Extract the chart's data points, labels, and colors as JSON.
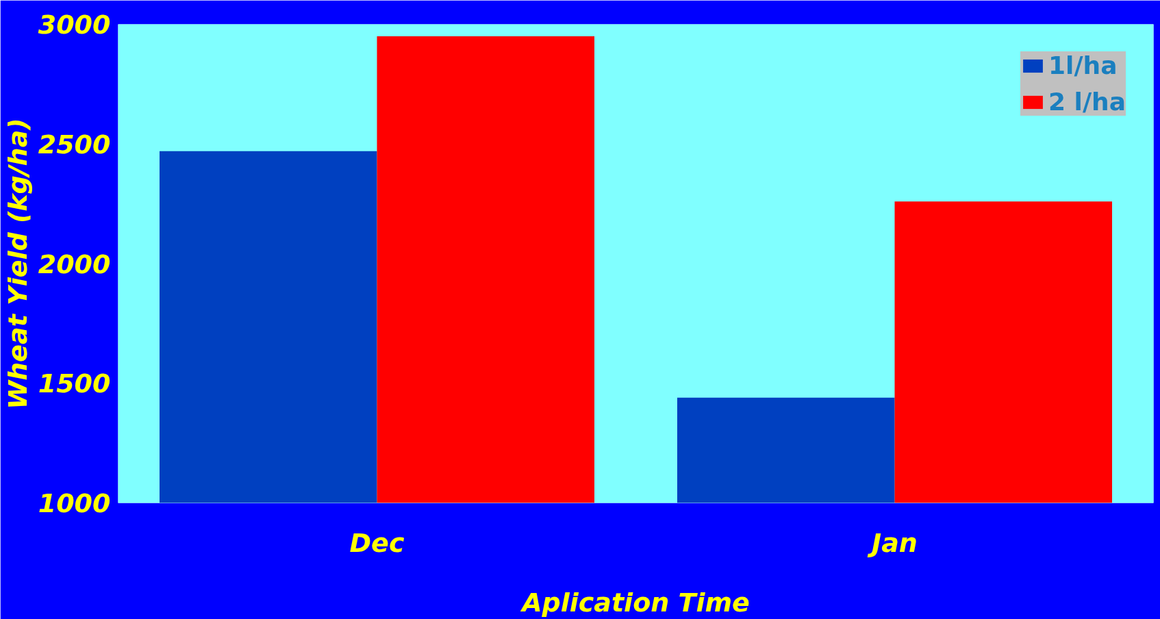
{
  "chart_data": {
    "type": "bar",
    "xlabel": "Aplication Time",
    "ylabel": "Wheat Yield (kg/ha)",
    "categories": [
      "Dec",
      "Jan"
    ],
    "series": [
      {
        "name": "1l/ha",
        "color": "#0040c0",
        "values": [
          2470,
          1440
        ]
      },
      {
        "name": "2 l/ha",
        "color": "#ff0000",
        "values": [
          2950,
          2260
        ]
      }
    ],
    "ylim": [
      1000,
      3000
    ],
    "yticks": [
      1000,
      1500,
      2000,
      2500,
      3000
    ],
    "grid": false,
    "legend": "top right"
  }
}
